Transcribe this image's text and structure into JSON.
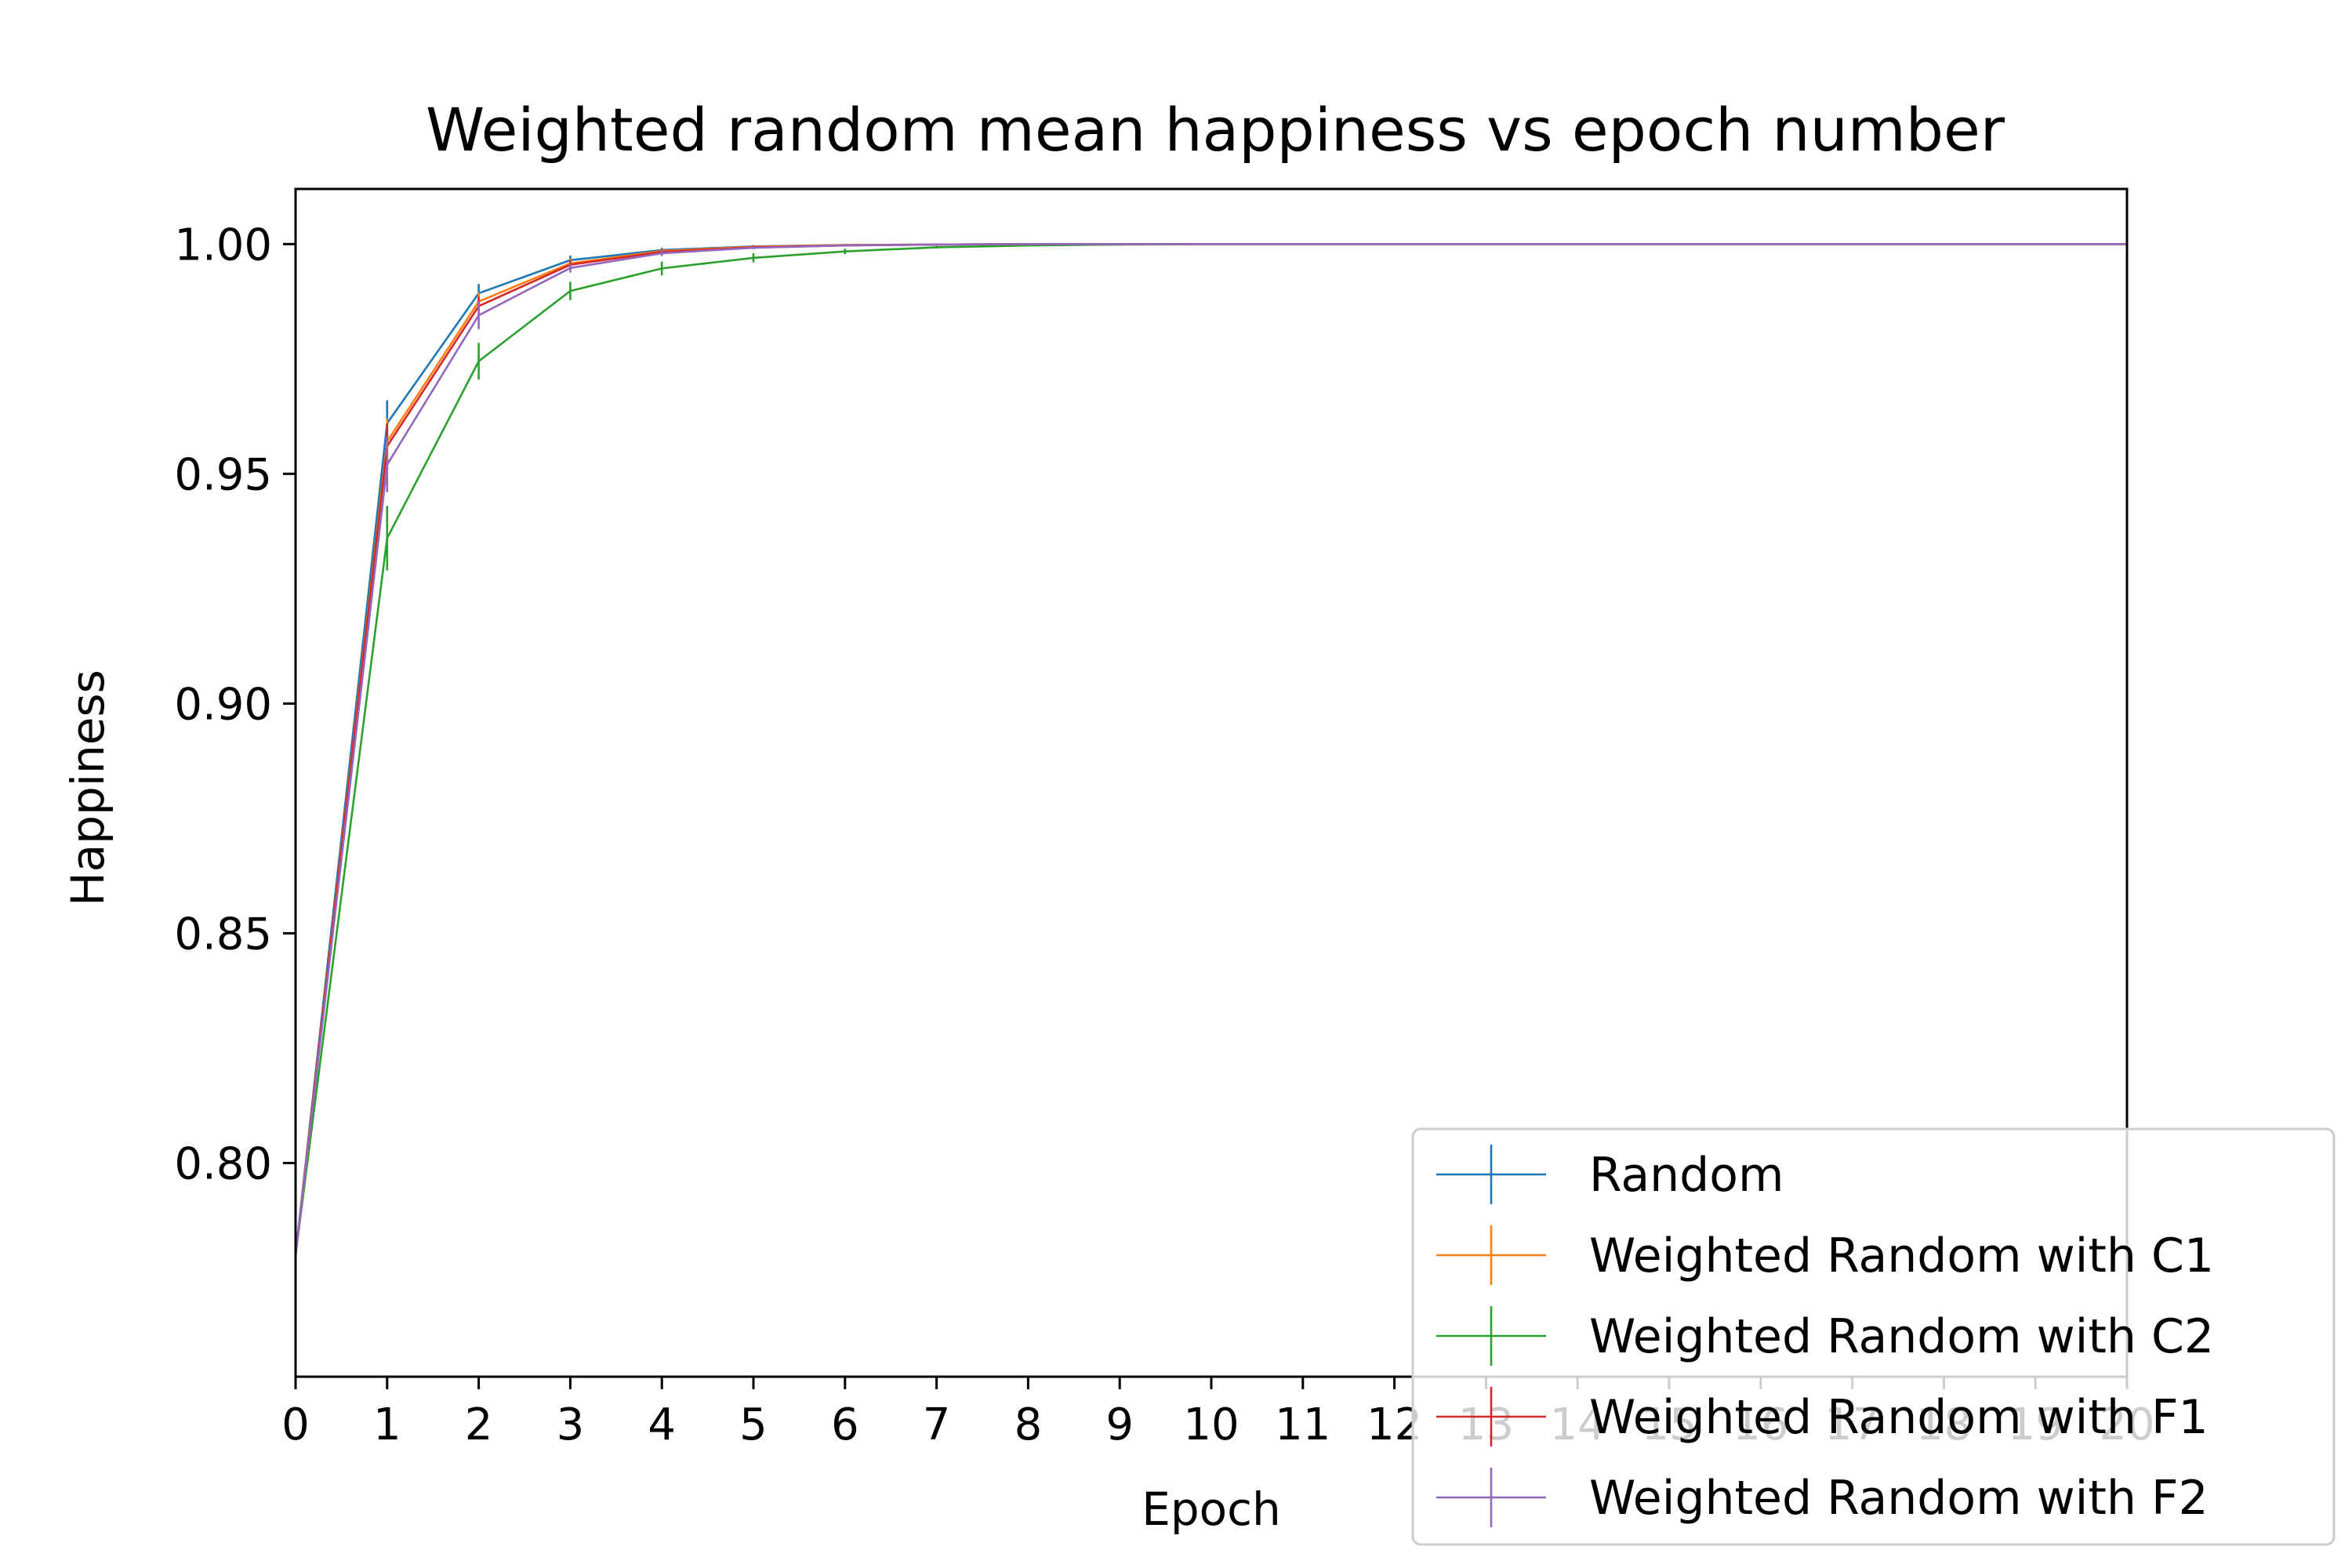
{
  "chart_data": {
    "type": "line",
    "title": "Weighted random mean happiness vs epoch number",
    "xlabel": "Epoch",
    "ylabel": "Happiness",
    "xlim": [
      0,
      20
    ],
    "ylim": [
      0.7535,
      1.012
    ],
    "x_ticks": [
      "0",
      "1",
      "2",
      "3",
      "4",
      "5",
      "6",
      "7",
      "8",
      "9",
      "10",
      "11",
      "12",
      "13",
      "14",
      "15",
      "16",
      "17",
      "18",
      "19",
      "20"
    ],
    "y_ticks": [
      "0.80",
      "0.85",
      "0.90",
      "0.95",
      "1.00"
    ],
    "grid": false,
    "legend_position": "lower-right",
    "x": [
      0,
      1,
      2,
      3,
      4,
      5,
      6,
      7,
      8,
      9,
      10,
      11,
      12,
      13,
      14,
      15,
      16,
      17,
      18,
      19,
      20
    ],
    "series": [
      {
        "name": "Random",
        "color": "#1f77b4",
        "values": [
          0.78,
          0.961,
          0.9893,
          0.9965,
          0.9987,
          0.9995,
          0.9998,
          0.9999,
          1.0,
          1.0,
          1.0,
          1.0,
          1.0,
          1.0,
          1.0,
          1.0,
          1.0,
          1.0,
          1.0,
          1.0,
          1.0
        ],
        "errors": [
          0,
          0.005,
          0.002,
          0.001,
          0.0005,
          0.0003,
          0.0002,
          0.0001,
          0,
          0,
          0,
          0,
          0,
          0,
          0,
          0,
          0,
          0,
          0,
          0,
          0
        ]
      },
      {
        "name": "Weighted Random with C1",
        "color": "#ff7f0e",
        "values": [
          0.78,
          0.957,
          0.9875,
          0.9958,
          0.9985,
          0.9994,
          0.9998,
          0.9999,
          1.0,
          1.0,
          1.0,
          1.0,
          1.0,
          1.0,
          1.0,
          1.0,
          1.0,
          1.0,
          1.0,
          1.0,
          1.0
        ],
        "errors": [
          0,
          0.005,
          0.002,
          0.001,
          0.0005,
          0.0003,
          0.0002,
          0.0001,
          0,
          0,
          0,
          0,
          0,
          0,
          0,
          0,
          0,
          0,
          0,
          0,
          0
        ]
      },
      {
        "name": "Weighted Random with C2",
        "color": "#2ca02c",
        "values": [
          0.78,
          0.936,
          0.9745,
          0.9898,
          0.9947,
          0.997,
          0.9984,
          0.9993,
          0.9997,
          0.9999,
          1.0,
          1.0,
          1.0,
          1.0,
          1.0,
          1.0,
          1.0,
          1.0,
          1.0,
          1.0,
          1.0
        ],
        "errors": [
          0,
          0.007,
          0.004,
          0.002,
          0.0015,
          0.001,
          0.0006,
          0.0003,
          0.0002,
          0.0001,
          0,
          0,
          0,
          0,
          0,
          0,
          0,
          0,
          0,
          0,
          0
        ]
      },
      {
        "name": "Weighted Random with F1",
        "color": "#d62728",
        "values": [
          0.78,
          0.956,
          0.9865,
          0.9955,
          0.9983,
          0.9993,
          0.9997,
          0.9999,
          1.0,
          1.0,
          1.0,
          1.0,
          1.0,
          1.0,
          1.0,
          1.0,
          1.0,
          1.0,
          1.0,
          1.0,
          1.0
        ],
        "errors": [
          0,
          0.005,
          0.002,
          0.001,
          0.0005,
          0.0003,
          0.0002,
          0.0001,
          0,
          0,
          0,
          0,
          0,
          0,
          0,
          0,
          0,
          0,
          0,
          0,
          0
        ]
      },
      {
        "name": "Weighted Random with F2",
        "color": "#9467bd",
        "values": [
          0.78,
          0.952,
          0.9845,
          0.9948,
          0.998,
          0.9992,
          0.9997,
          0.9999,
          1.0,
          1.0,
          1.0,
          1.0,
          1.0,
          1.0,
          1.0,
          1.0,
          1.0,
          1.0,
          1.0,
          1.0,
          1.0
        ],
        "errors": [
          0,
          0.006,
          0.003,
          0.001,
          0.0006,
          0.0003,
          0.0002,
          0.0001,
          0,
          0,
          0,
          0,
          0,
          0,
          0,
          0,
          0,
          0,
          0,
          0,
          0
        ]
      }
    ]
  }
}
